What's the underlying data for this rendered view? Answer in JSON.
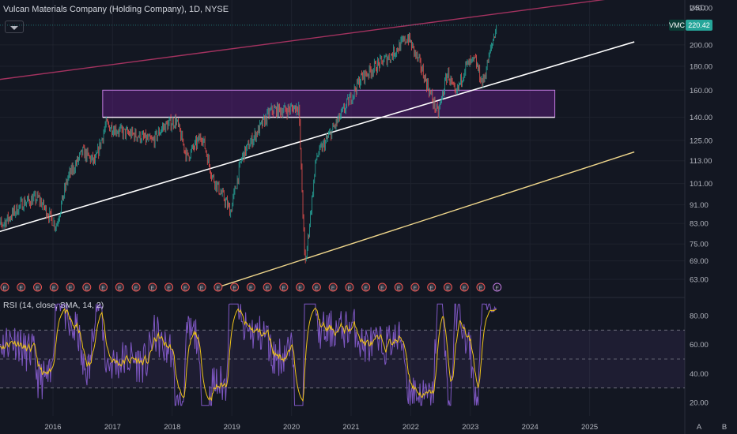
{
  "header": {
    "title": "Vulcan Materials Company (Holding Company), 1D, NYSE",
    "currency": "USD"
  },
  "price_label": {
    "ticker": "VMC",
    "value": "220.42"
  },
  "rsi_header": {
    "title": "RSI (14, close, SMA, 14, 2)"
  },
  "corner_buttons": [
    "A",
    "B"
  ],
  "colors": {
    "background": "#131722",
    "up": "#26a69a",
    "down": "#ef5350",
    "channel_top": "#a3325f",
    "channel_mid": "#ffffff",
    "channel_low": "#f0d78c",
    "zone_fill": "#7b1fa2",
    "zone_border": "#c27ae0",
    "rsi_line": "#7e57c2",
    "rsi_ma": "#f0c419",
    "rsi_band": "#7e57c2"
  },
  "chart_data": [
    {
      "type": "candlestick",
      "title": "Vulcan Materials Company (Holding Company), 1D, NYSE",
      "y_unit": "USD",
      "y_scale": "log",
      "y_ticks": [
        63,
        69,
        75,
        83,
        91,
        101,
        113,
        125,
        140,
        160,
        180,
        200,
        240
      ],
      "y_tick_labels": [
        "63.00",
        "69.00",
        "75.00",
        "83.00",
        "91.00",
        "101.00",
        "113.00",
        "125.00",
        "140.00",
        "160.00",
        "180.00",
        "200.00",
        "240.00"
      ],
      "x_ticks": [
        "2016",
        "2017",
        "2018",
        "2019",
        "2020",
        "2021",
        "2022",
        "2023",
        "2024",
        "2025"
      ],
      "last_price": 220.42,
      "price_path": [
        [
          "2015-01-05",
          80
        ],
        [
          "2015-04-01",
          85
        ],
        [
          "2015-07-01",
          92
        ],
        [
          "2015-10-01",
          94
        ],
        [
          "2016-01-20",
          82
        ],
        [
          "2016-04-01",
          104
        ],
        [
          "2016-07-01",
          118
        ],
        [
          "2016-09-15",
          112
        ],
        [
          "2016-11-20",
          135
        ],
        [
          "2017-03-01",
          130
        ],
        [
          "2017-06-01",
          128
        ],
        [
          "2017-09-01",
          124
        ],
        [
          "2017-11-01",
          133
        ],
        [
          "2018-01-25",
          138
        ],
        [
          "2018-04-01",
          115
        ],
        [
          "2018-07-01",
          128
        ],
        [
          "2018-09-01",
          105
        ],
        [
          "2018-12-24",
          88
        ],
        [
          "2019-03-01",
          115
        ],
        [
          "2019-06-01",
          130
        ],
        [
          "2019-09-01",
          145
        ],
        [
          "2019-12-01",
          145
        ],
        [
          "2020-02-15",
          148
        ],
        [
          "2020-03-23",
          67
        ],
        [
          "2020-06-01",
          115
        ],
        [
          "2020-09-01",
          130
        ],
        [
          "2020-12-01",
          148
        ],
        [
          "2021-03-01",
          170
        ],
        [
          "2021-06-01",
          180
        ],
        [
          "2021-09-01",
          190
        ],
        [
          "2021-12-15",
          208
        ],
        [
          "2022-03-01",
          180
        ],
        [
          "2022-06-15",
          142
        ],
        [
          "2022-08-15",
          175
        ],
        [
          "2022-10-01",
          155
        ],
        [
          "2022-12-01",
          180
        ],
        [
          "2023-02-01",
          185
        ],
        [
          "2023-03-15",
          165
        ],
        [
          "2023-06-09",
          220.42
        ]
      ],
      "earnings_markers": 31,
      "drawings": {
        "rising_channel_top": [
          [
            "2015-01-01",
            168
          ],
          [
            "2025-10-01",
            255
          ]
        ],
        "rising_channel_mid": [
          [
            "2015-01-01",
            79
          ],
          [
            "2025-10-01",
            203
          ]
        ],
        "rising_channel_low": [
          [
            "2018-11-01",
            61
          ],
          [
            "2025-10-01",
            118
          ]
        ],
        "demand_zone": {
          "from": "2016-11-01",
          "to": "2024-06-01",
          "low": 140,
          "high": 160
        },
        "support_line": 140
      }
    },
    {
      "type": "line",
      "title": "RSI (14, close, SMA, 14, 2)",
      "y_ticks": [
        20,
        40,
        60,
        80
      ],
      "y_tick_labels": [
        "20.00",
        "40.00",
        "60.00",
        "80.00"
      ],
      "bands": {
        "upper": 70,
        "middle": 50,
        "lower": 30
      },
      "series": [
        {
          "name": "RSI",
          "last": 85
        },
        {
          "name": "SMA",
          "last": 80
        }
      ]
    }
  ]
}
